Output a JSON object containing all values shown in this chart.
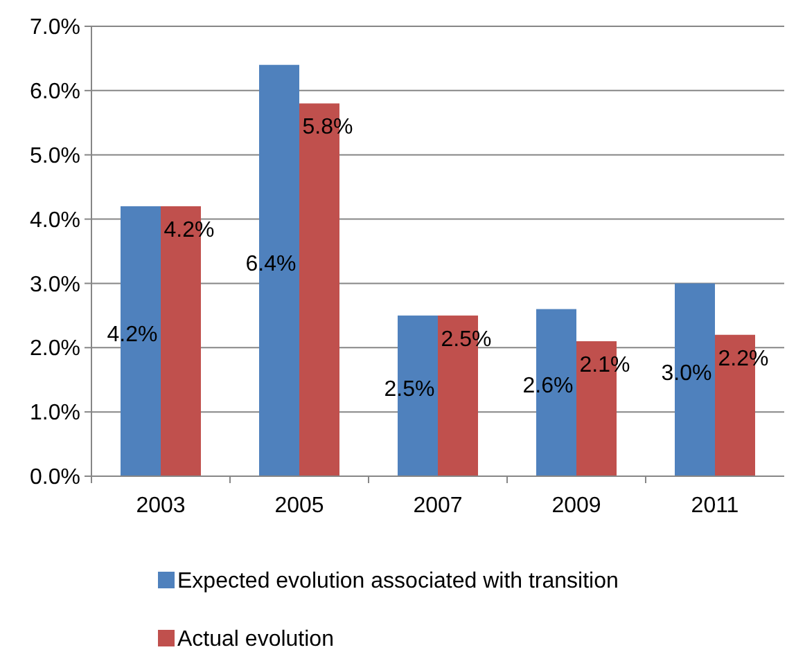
{
  "chart_data": {
    "type": "bar",
    "categories": [
      "2003",
      "2005",
      "2007",
      "2009",
      "2011"
    ],
    "series": [
      {
        "name": "Expected evolution associated with transition",
        "color": "#4f81bd",
        "values": [
          4.2,
          6.4,
          2.5,
          2.6,
          3.0
        ],
        "value_labels": [
          "4.2%",
          "6.4%",
          "2.5%",
          "2.6%",
          "3.0%"
        ]
      },
      {
        "name": "Actual evolution",
        "color": "#c0504d",
        "values": [
          4.2,
          5.8,
          2.5,
          2.1,
          2.2
        ],
        "value_labels": [
          "4.2%",
          "5.8%",
          "2.5%",
          "2.1%",
          "2.2%"
        ]
      }
    ],
    "ylim": [
      0,
      7
    ],
    "yticks": [
      {
        "value": 0,
        "label": "0.0%"
      },
      {
        "value": 1,
        "label": "1.0%"
      },
      {
        "value": 2,
        "label": "2.0%"
      },
      {
        "value": 3,
        "label": "3.0%"
      },
      {
        "value": 4,
        "label": "4.0%"
      },
      {
        "value": 5,
        "label": "5.0%"
      },
      {
        "value": 6,
        "label": "6.0%"
      },
      {
        "value": 7,
        "label": "7.0%"
      }
    ],
    "grid": "y",
    "legend": "bottom"
  }
}
